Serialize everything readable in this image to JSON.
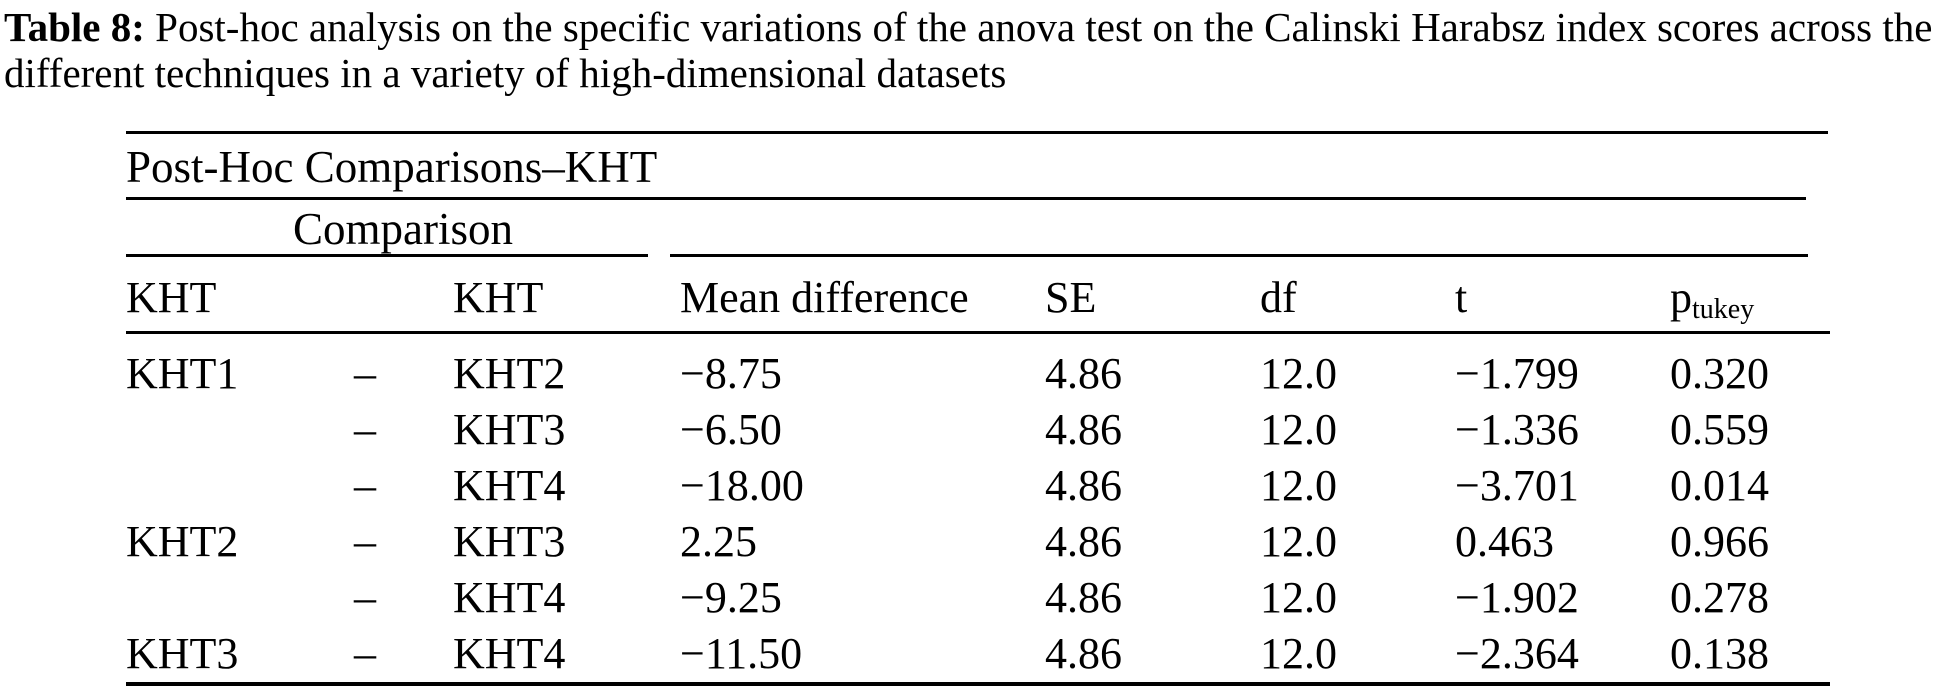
{
  "colors": {
    "background": "#ffffff",
    "text": "#000000",
    "rule": "#000000"
  },
  "caption": {
    "label": "Table 8:",
    "text": " Post-hoc analysis on the specific variations of the anova test on the Calinski Harabsz index scores across the different techniques in a variety of high-dimensional datasets"
  },
  "table": {
    "title": "Post-Hoc Comparisons–KHT",
    "comparison_spanner": "Comparison",
    "columns": [
      "KHT",
      "KHT",
      "Mean difference",
      "SE",
      "df",
      "t"
    ],
    "p_column": {
      "base": "p",
      "sub": "tukey"
    },
    "rows": [
      {
        "group": "KHT1",
        "dash": "–",
        "vs": "KHT2",
        "mean_difference": "−8.75",
        "se": "4.86",
        "df": "12.0",
        "t": "−1.799",
        "p": "0.320"
      },
      {
        "group": "",
        "dash": "–",
        "vs": "KHT3",
        "mean_difference": "−6.50",
        "se": "4.86",
        "df": "12.0",
        "t": "−1.336",
        "p": "0.559"
      },
      {
        "group": "",
        "dash": "–",
        "vs": "KHT4",
        "mean_difference": "−18.00",
        "se": "4.86",
        "df": "12.0",
        "t": "−3.701",
        "p": "0.014"
      },
      {
        "group": "KHT2",
        "dash": "–",
        "vs": "KHT3",
        "mean_difference": "2.25",
        "se": "4.86",
        "df": "12.0",
        "t": "0.463",
        "p": "0.966"
      },
      {
        "group": "",
        "dash": "–",
        "vs": "KHT4",
        "mean_difference": "−9.25",
        "se": "4.86",
        "df": "12.0",
        "t": "−1.902",
        "p": "0.278"
      },
      {
        "group": "KHT3",
        "dash": "–",
        "vs": "KHT4",
        "mean_difference": "−11.50",
        "se": "4.86",
        "df": "12.0",
        "t": "−2.364",
        "p": "0.138"
      }
    ]
  }
}
